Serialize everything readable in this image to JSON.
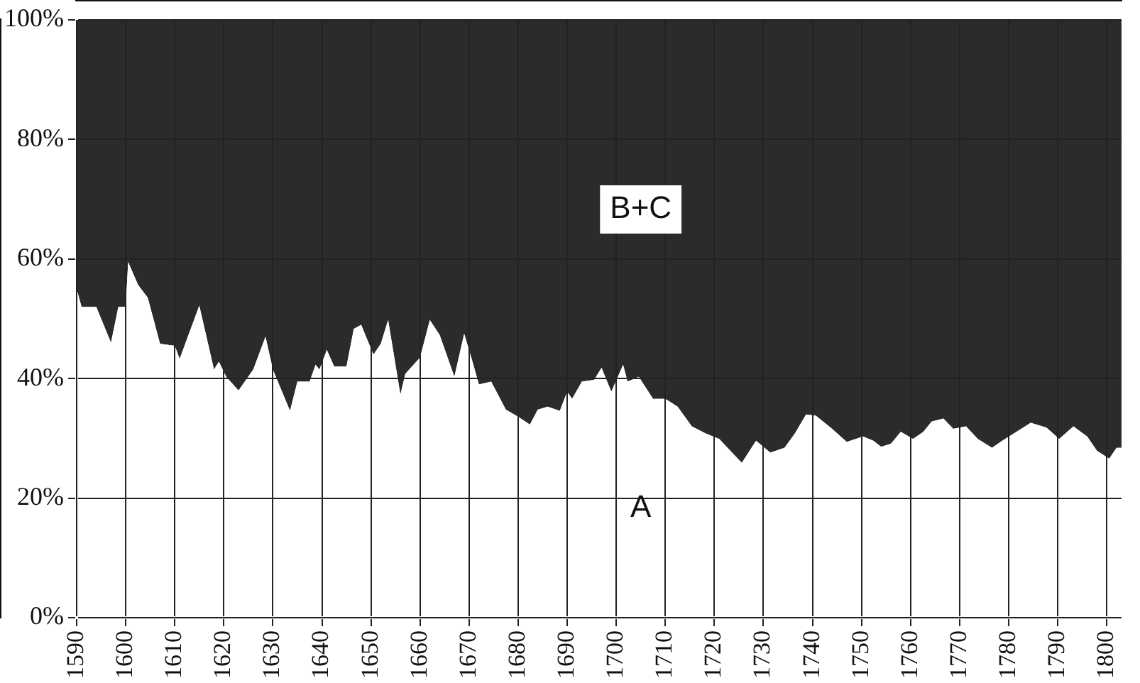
{
  "chart_data": {
    "type": "area",
    "stacked": true,
    "grid": true,
    "legend": false,
    "x": [
      1590,
      1591,
      1594,
      1597,
      1598.5,
      1600,
      1600.5,
      1602.5,
      1604.5,
      1607,
      1610,
      1611,
      1615,
      1618,
      1619,
      1620.5,
      1623,
      1626,
      1628.5,
      1630,
      1633.5,
      1635,
      1637.5,
      1638.7,
      1639.5,
      1641,
      1642.5,
      1645,
      1646.5,
      1648,
      1650.5,
      1652,
      1653.5,
      1656,
      1657,
      1660,
      1662,
      1664,
      1667,
      1669,
      1670.7,
      1672,
      1674.5,
      1677.5,
      1680,
      1682.4,
      1684,
      1686,
      1688.5,
      1690,
      1691,
      1693,
      1695.5,
      1697,
      1699,
      1701.4,
      1702.3,
      1704.6,
      1707.5,
      1710,
      1712.5,
      1715.4,
      1718.3,
      1721,
      1725.6,
      1728.5,
      1731.4,
      1734.3,
      1736.4,
      1738.7,
      1740.7,
      1744,
      1747,
      1750.3,
      1752.4,
      1754,
      1756,
      1758,
      1760.5,
      1762.6,
      1764.3,
      1766.7,
      1768.7,
      1771.3,
      1773.7,
      1776.6,
      1778.7,
      1781,
      1784.5,
      1787.7,
      1790.3,
      1793.2,
      1796,
      1798,
      1800.5,
      1802,
      1803
    ],
    "series": [
      {
        "name": "A",
        "color": "#ffffff",
        "values": [
          55,
          52,
          52,
          46,
          52,
          52,
          59.5,
          55.7,
          53.5,
          45.8,
          45.5,
          43.3,
          52.2,
          41.5,
          42.8,
          40.3,
          38,
          41.5,
          47,
          41.5,
          34.6,
          39.5,
          39.5,
          42.3,
          41.5,
          44.8,
          42,
          42,
          48.3,
          49,
          44,
          45.8,
          49.8,
          37.3,
          40.8,
          43.5,
          49.8,
          47.3,
          40.3,
          47.5,
          42.8,
          39,
          39.5,
          34.8,
          33.6,
          32.3,
          34.8,
          35.3,
          34.6,
          37.8,
          36.6,
          39.5,
          39.8,
          41.8,
          37.8,
          42.3,
          39.5,
          40.3,
          36.6,
          36.6,
          35.3,
          32,
          30.8,
          29.9,
          25.9,
          29.6,
          27.6,
          28.4,
          30.8,
          34,
          33.8,
          31.6,
          29.4,
          30.3,
          29.6,
          28.6,
          29.1,
          31.1,
          29.9,
          31.1,
          32.8,
          33.3,
          31.6,
          32,
          29.9,
          28.4,
          29.6,
          30.8,
          32.6,
          31.8,
          29.9,
          32,
          30.3,
          27.9,
          26.6,
          28.4,
          28.4
        ]
      },
      {
        "name": "B+C",
        "color": "#2b2b2b",
        "values": [
          45,
          48,
          48,
          54,
          48,
          48,
          40.5,
          44.3,
          46.5,
          54.2,
          54.5,
          56.7,
          47.8,
          58.5,
          57.2,
          59.7,
          62,
          58.5,
          53,
          58.5,
          65.4,
          60.5,
          60.5,
          57.7,
          58.5,
          55.2,
          58,
          58,
          51.7,
          51,
          56,
          54.2,
          50.2,
          62.7,
          59.2,
          56.5,
          50.2,
          52.7,
          59.7,
          52.5,
          57.2,
          61,
          60.5,
          65.2,
          66.4,
          67.7,
          65.2,
          64.7,
          65.4,
          62.2,
          63.4,
          60.5,
          60.2,
          58.2,
          62.2,
          57.7,
          60.5,
          59.7,
          63.4,
          63.4,
          64.7,
          68,
          69.2,
          70.1,
          74.1,
          70.4,
          72.4,
          71.6,
          69.2,
          66,
          66.2,
          68.4,
          70.6,
          69.7,
          70.4,
          71.4,
          70.9,
          68.9,
          70.1,
          68.9,
          67.2,
          66.7,
          68.4,
          68,
          70.1,
          71.6,
          70.4,
          69.2,
          67.4,
          68.2,
          70.1,
          68,
          69.7,
          72.1,
          73.4,
          71.6,
          71.6
        ]
      }
    ],
    "xlim": [
      1590,
      1803
    ],
    "xticks": [
      1590,
      1600,
      1610,
      1620,
      1630,
      1640,
      1650,
      1660,
      1670,
      1680,
      1690,
      1700,
      1710,
      1720,
      1730,
      1740,
      1750,
      1760,
      1770,
      1780,
      1790,
      1800
    ],
    "ylim": [
      0,
      100
    ],
    "yticks": [
      {
        "value": 0,
        "label": "0%"
      },
      {
        "value": 20,
        "label": "20%"
      },
      {
        "value": 40,
        "label": "40%"
      },
      {
        "value": 60,
        "label": "60%"
      },
      {
        "value": 80,
        "label": "80%"
      },
      {
        "value": 100,
        "label": "100%"
      }
    ]
  }
}
